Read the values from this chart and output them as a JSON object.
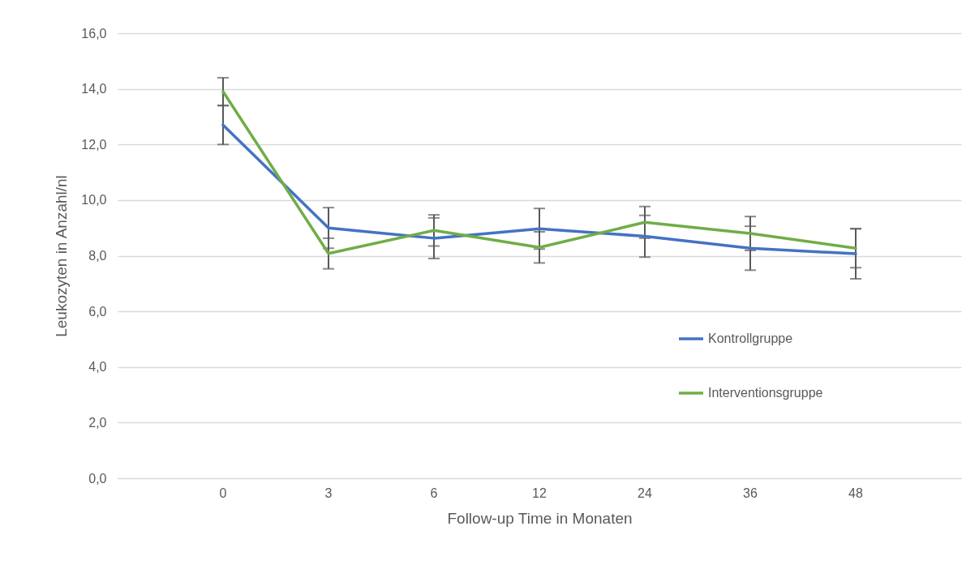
{
  "chart_data": {
    "type": "line",
    "xlabel": "Follow-up Time in Monaten",
    "ylabel": "Leukozyten in Anzahl/nl",
    "categories": [
      "0",
      "3",
      "6",
      "12",
      "24",
      "36",
      "48"
    ],
    "series": [
      {
        "name": "Kontrollgruppe",
        "color": "#4472c4",
        "values": [
          12.7,
          9.0,
          8.63,
          8.97,
          8.7,
          8.27,
          8.07
        ],
        "errors": [
          0.7,
          0.73,
          0.73,
          0.73,
          0.75,
          0.79,
          0.9
        ]
      },
      {
        "name": "Interventionsgruppe",
        "color": "#70ad47",
        "values": [
          13.9,
          8.08,
          8.91,
          8.3,
          9.2,
          8.8,
          8.27
        ],
        "errors": [
          0.5,
          0.55,
          0.56,
          0.56,
          0.57,
          0.61,
          0.7
        ]
      }
    ],
    "ylim": [
      0,
      16
    ],
    "yticks": [
      {
        "value": 0,
        "label": "0,0"
      },
      {
        "value": 2,
        "label": "2,0"
      },
      {
        "value": 4,
        "label": "4,0"
      },
      {
        "value": 6,
        "label": "6,0"
      },
      {
        "value": 8,
        "label": "8,0"
      },
      {
        "value": 10,
        "label": "10,0"
      },
      {
        "value": 12,
        "label": "12,0"
      },
      {
        "value": 14,
        "label": "14,0"
      },
      {
        "value": 16,
        "label": "16,0"
      }
    ],
    "grid": "y",
    "legend": "bottom right",
    "marker": "none",
    "line_style": "solid"
  }
}
